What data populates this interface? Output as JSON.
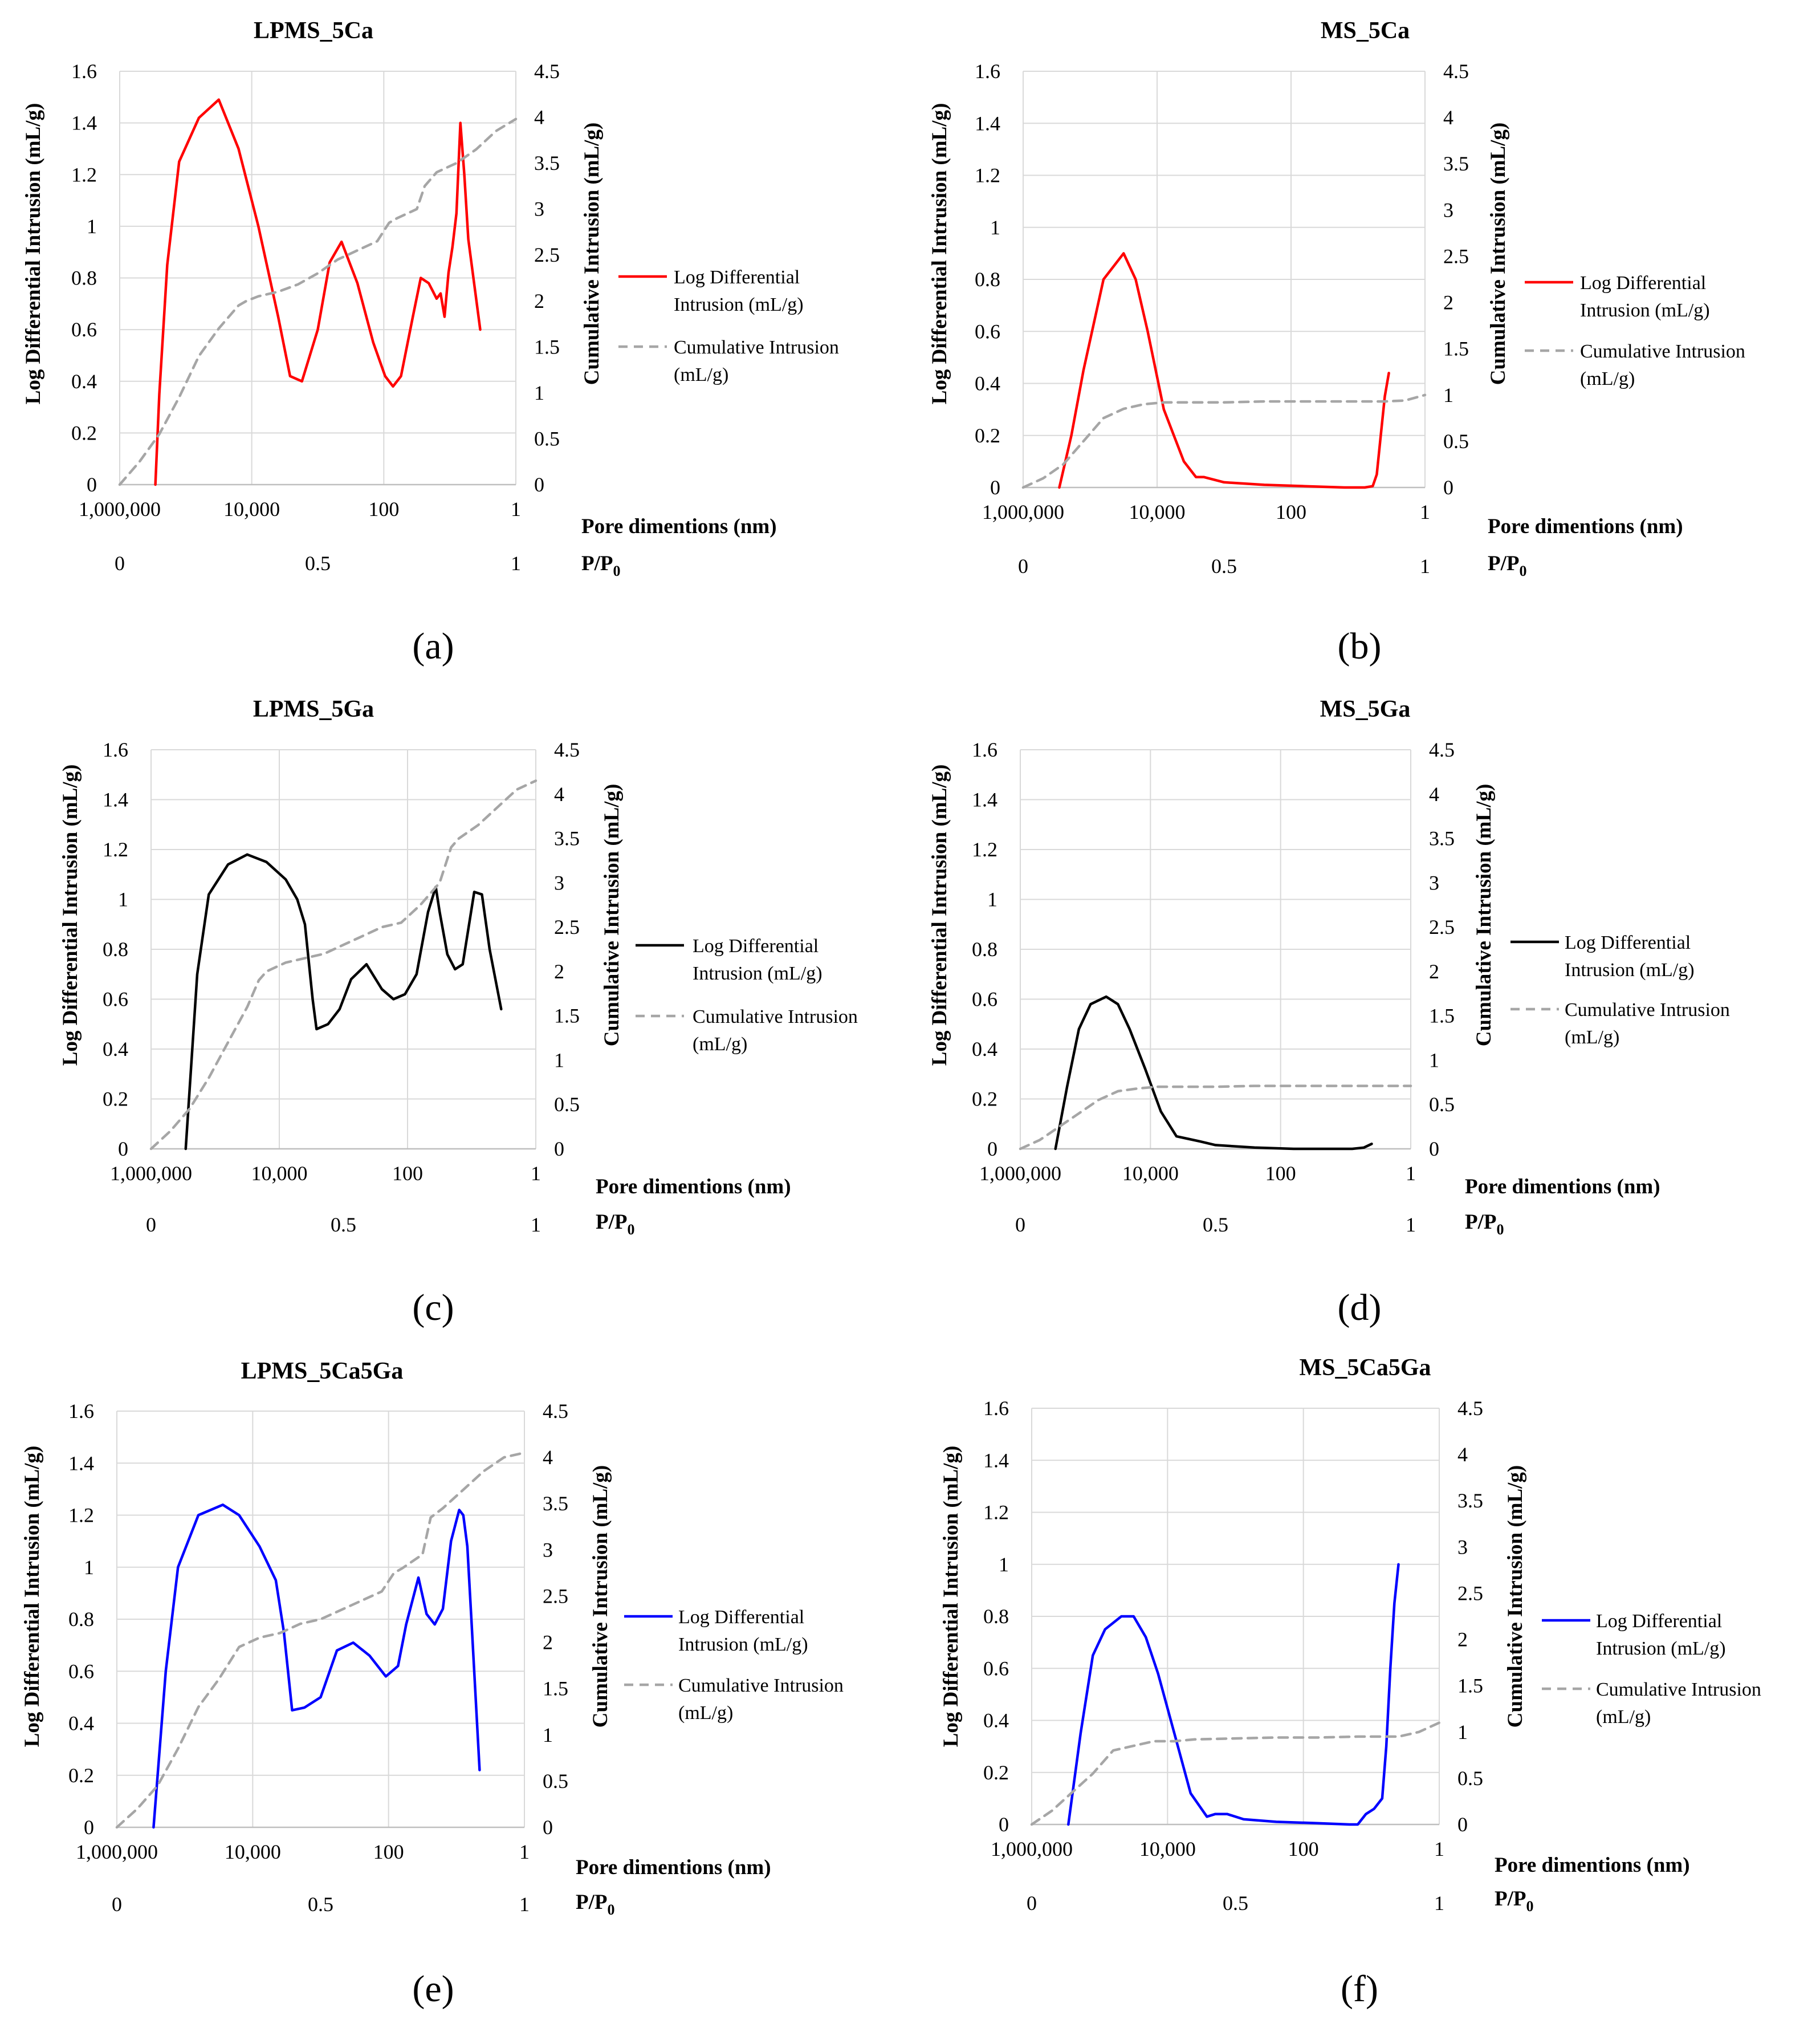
{
  "figure_title": "Pore size distribution panels",
  "chart_data": [
    {
      "id": "a",
      "type": "line",
      "title": "LPMS_5Ca",
      "panel_label": "(a)",
      "color": "#ff0000",
      "y_left": {
        "label": "Log Differential Intrusion (mL/g)",
        "range": [
          0,
          1.6
        ],
        "ticks": [
          "0",
          "0.2",
          "0.4",
          "0.6",
          "0.8",
          "1",
          "1.2",
          "1.4",
          "1.6"
        ]
      },
      "y_right": {
        "label": "Cumulative Intrusion (mL/g)",
        "range": [
          0,
          4.5
        ],
        "ticks": [
          "0",
          "0.5",
          "1",
          "1.5",
          "2",
          "2.5",
          "3",
          "3.5",
          "4",
          "4.5"
        ]
      },
      "x_pore": {
        "label": "Pore dimentions (nm)",
        "ticks": [
          "1,000,000",
          "10,000",
          "100",
          "1"
        ],
        "range": [
          1000000,
          1
        ]
      },
      "x_pp": {
        "label": "P/P0",
        "ticks": [
          "0",
          "0.5",
          "1"
        ],
        "range": [
          0,
          1
        ]
      },
      "legend": [
        "Log Differential Intrusion (mL/g)",
        "Cumulative Intrusion (mL/g)"
      ],
      "series": [
        {
          "name": "Log Differential Intrusion (mL/g)",
          "axis": "left",
          "x": [
            0.09,
            0.1,
            0.12,
            0.15,
            0.2,
            0.25,
            0.3,
            0.35,
            0.4,
            0.43,
            0.46,
            0.5,
            0.53,
            0.56,
            0.6,
            0.64,
            0.67,
            0.69,
            0.71,
            0.74,
            0.76,
            0.78,
            0.79,
            0.8,
            0.81,
            0.82,
            0.83,
            0.84,
            0.85,
            0.86,
            0.87,
            0.88,
            0.91
          ],
          "values": [
            0,
            0.35,
            0.85,
            1.25,
            1.42,
            1.49,
            1.3,
            1.0,
            0.65,
            0.42,
            0.4,
            0.6,
            0.86,
            0.94,
            0.78,
            0.55,
            0.42,
            0.38,
            0.42,
            0.65,
            0.8,
            0.78,
            0.75,
            0.72,
            0.74,
            0.65,
            0.82,
            0.92,
            1.05,
            1.4,
            1.2,
            0.95,
            0.6
          ]
        },
        {
          "name": "Cumulative Intrusion (mL/g)",
          "axis": "right",
          "x": [
            0.0,
            0.05,
            0.1,
            0.15,
            0.2,
            0.25,
            0.3,
            0.32,
            0.35,
            0.4,
            0.45,
            0.5,
            0.55,
            0.6,
            0.65,
            0.68,
            0.7,
            0.75,
            0.77,
            0.8,
            0.85,
            0.9,
            0.95,
            1.0
          ],
          "values": [
            0,
            0.25,
            0.55,
            0.95,
            1.4,
            1.7,
            1.95,
            2.0,
            2.05,
            2.1,
            2.18,
            2.3,
            2.45,
            2.55,
            2.65,
            2.85,
            2.9,
            3.0,
            3.25,
            3.4,
            3.5,
            3.65,
            3.85,
            3.98
          ]
        }
      ]
    },
    {
      "id": "b",
      "type": "line",
      "title": "MS_5Ca",
      "panel_label": "(b)",
      "color": "#ff0000",
      "y_left": {
        "label": "Log Differential Intrusion (mL/g)",
        "range": [
          0,
          1.6
        ],
        "ticks": [
          "0",
          "0.2",
          "0.4",
          "0.6",
          "0.8",
          "1",
          "1.2",
          "1.4",
          "1.6"
        ]
      },
      "y_right": {
        "label": "Cumulative Intrusion (mL/g)",
        "range": [
          0,
          4.5
        ],
        "ticks": [
          "0",
          "0.5",
          "1",
          "1.5",
          "2",
          "2.5",
          "3",
          "3.5",
          "4",
          "4.5"
        ]
      },
      "x_pore": {
        "label": "Pore dimentions (nm)",
        "ticks": [
          "1,000,000",
          "10,000",
          "100",
          "1"
        ],
        "range": [
          1000000,
          1
        ]
      },
      "x_pp": {
        "label": "P/P0",
        "ticks": [
          "0",
          "0.5",
          "1"
        ],
        "range": [
          0,
          1
        ]
      },
      "legend": [
        "Log Differential Intrusion (mL/g)",
        "Cumulative Intrusion (mL/g)"
      ],
      "series": [
        {
          "name": "Log Differential Intrusion (mL/g)",
          "axis": "left",
          "x": [
            0.09,
            0.12,
            0.15,
            0.2,
            0.25,
            0.28,
            0.31,
            0.35,
            0.4,
            0.43,
            0.45,
            0.5,
            0.6,
            0.7,
            0.8,
            0.85,
            0.87,
            0.88,
            0.89,
            0.9,
            0.91
          ],
          "values": [
            0,
            0.2,
            0.45,
            0.8,
            0.9,
            0.8,
            0.6,
            0.3,
            0.1,
            0.04,
            0.04,
            0.02,
            0.01,
            0.005,
            0,
            0,
            0.005,
            0.05,
            0.2,
            0.35,
            0.44
          ]
        },
        {
          "name": "Cumulative Intrusion (mL/g)",
          "axis": "right",
          "x": [
            0.0,
            0.05,
            0.1,
            0.15,
            0.2,
            0.25,
            0.3,
            0.35,
            0.4,
            0.5,
            0.6,
            0.7,
            0.8,
            0.9,
            0.95,
            1.0
          ],
          "values": [
            0,
            0.1,
            0.25,
            0.5,
            0.75,
            0.85,
            0.9,
            0.92,
            0.92,
            0.92,
            0.93,
            0.93,
            0.93,
            0.93,
            0.94,
            1.0
          ]
        }
      ]
    },
    {
      "id": "c",
      "type": "line",
      "title": "LPMS_5Ga",
      "panel_label": "(c)",
      "color": "#000000",
      "y_left": {
        "label": "Log Differential Intrusion (mL/g)",
        "range": [
          0,
          1.6
        ],
        "ticks": [
          "0",
          "0.2",
          "0.4",
          "0.6",
          "0.8",
          "1",
          "1.2",
          "1.4",
          "1.6"
        ]
      },
      "y_right": {
        "label": "Cumulative Intrusion (mL/g)",
        "range": [
          0,
          4.5
        ],
        "ticks": [
          "0",
          "0.5",
          "1",
          "1.5",
          "2",
          "2.5",
          "3",
          "3.5",
          "4",
          "4.5"
        ]
      },
      "x_pore": {
        "label": "Pore dimentions (nm)",
        "ticks": [
          "1,000,000",
          "10,000",
          "100",
          "1"
        ],
        "range": [
          1000000,
          1
        ]
      },
      "x_pp": {
        "label": "P/P0",
        "ticks": [
          "0",
          "0.5",
          "1"
        ],
        "range": [
          0,
          1
        ]
      },
      "legend": [
        "Log Differential Intrusion (mL/g)",
        "Cumulative Intrusion (mL/g)"
      ],
      "series": [
        {
          "name": "Log Differential Intrusion (mL/g)",
          "axis": "left",
          "x": [
            0.09,
            0.12,
            0.15,
            0.2,
            0.25,
            0.3,
            0.35,
            0.38,
            0.4,
            0.42,
            0.43,
            0.46,
            0.49,
            0.52,
            0.56,
            0.6,
            0.63,
            0.66,
            0.69,
            0.72,
            0.74,
            0.75,
            0.77,
            0.79,
            0.81,
            0.84,
            0.86,
            0.88,
            0.91
          ],
          "values": [
            0,
            0.7,
            1.02,
            1.14,
            1.18,
            1.15,
            1.08,
            1.0,
            0.9,
            0.6,
            0.48,
            0.5,
            0.56,
            0.68,
            0.74,
            0.64,
            0.6,
            0.62,
            0.7,
            0.95,
            1.05,
            0.95,
            0.78,
            0.72,
            0.74,
            1.03,
            1.02,
            0.8,
            0.56
          ]
        },
        {
          "name": "Cumulative Intrusion (mL/g)",
          "axis": "right",
          "x": [
            0.0,
            0.05,
            0.1,
            0.15,
            0.2,
            0.25,
            0.28,
            0.3,
            0.35,
            0.4,
            0.45,
            0.5,
            0.55,
            0.6,
            0.65,
            0.7,
            0.73,
            0.75,
            0.78,
            0.8,
            0.85,
            0.9,
            0.95,
            1.0
          ],
          "values": [
            0,
            0.2,
            0.45,
            0.8,
            1.2,
            1.6,
            1.9,
            2.0,
            2.1,
            2.15,
            2.2,
            2.3,
            2.4,
            2.5,
            2.55,
            2.75,
            2.9,
            3.0,
            3.4,
            3.5,
            3.65,
            3.85,
            4.05,
            4.15
          ]
        }
      ]
    },
    {
      "id": "d",
      "type": "line",
      "title": "MS_5Ga",
      "panel_label": "(d)",
      "color": "#000000",
      "y_left": {
        "label": "Log Differential Intrusion (mL/g)",
        "range": [
          0,
          1.6
        ],
        "ticks": [
          "0",
          "0.2",
          "0.4",
          "0.6",
          "0.8",
          "1",
          "1.2",
          "1.4",
          "1.6"
        ]
      },
      "y_right": {
        "label": "Cumulative Intrusion (mL/g)",
        "range": [
          0,
          4.5
        ],
        "ticks": [
          "0",
          "0.5",
          "1",
          "1.5",
          "2",
          "2.5",
          "3",
          "3.5",
          "4",
          "4.5"
        ]
      },
      "x_pore": {
        "label": "Pore dimentions (nm)",
        "ticks": [
          "1,000,000",
          "10,000",
          "100",
          "1"
        ],
        "range": [
          1000000,
          1
        ]
      },
      "x_pp": {
        "label": "P/P0",
        "ticks": [
          "0",
          "0.5",
          "1"
        ],
        "range": [
          0,
          1
        ]
      },
      "legend": [
        "Log Differential Intrusion (mL/g)",
        "Cumulative Intrusion (mL/g)"
      ],
      "series": [
        {
          "name": "Log Differential Intrusion (mL/g)",
          "axis": "left",
          "x": [
            0.09,
            0.12,
            0.15,
            0.18,
            0.22,
            0.25,
            0.28,
            0.32,
            0.36,
            0.4,
            0.43,
            0.46,
            0.5,
            0.6,
            0.7,
            0.8,
            0.85,
            0.88,
            0.9
          ],
          "values": [
            0,
            0.25,
            0.48,
            0.58,
            0.61,
            0.58,
            0.48,
            0.32,
            0.15,
            0.05,
            0.04,
            0.03,
            0.015,
            0.005,
            0,
            0,
            0,
            0.005,
            0.02
          ]
        },
        {
          "name": "Cumulative Intrusion (mL/g)",
          "axis": "right",
          "x": [
            0.0,
            0.05,
            0.1,
            0.15,
            0.2,
            0.25,
            0.3,
            0.35,
            0.4,
            0.5,
            0.6,
            0.7,
            0.8,
            0.9,
            1.0
          ],
          "values": [
            0,
            0.1,
            0.25,
            0.4,
            0.55,
            0.65,
            0.68,
            0.7,
            0.7,
            0.7,
            0.71,
            0.71,
            0.71,
            0.71,
            0.71
          ]
        }
      ]
    },
    {
      "id": "e",
      "type": "line",
      "title": "LPMS_5Ca5Ga",
      "panel_label": "(e)",
      "color": "#0000ff",
      "y_left": {
        "label": "Log Differential Intrusion (mL/g)",
        "range": [
          0,
          1.6
        ],
        "ticks": [
          "0",
          "0.2",
          "0.4",
          "0.6",
          "0.8",
          "1",
          "1.2",
          "1.4",
          "1.6"
        ]
      },
      "y_right": {
        "label": "Cumulative Intrusion (mL/g)",
        "range": [
          0,
          4.5
        ],
        "ticks": [
          "0",
          "0.5",
          "1",
          "1.5",
          "2",
          "2.5",
          "3",
          "3.5",
          "4",
          "4.5"
        ]
      },
      "x_pore": {
        "label": "Pore dimentions (nm)",
        "ticks": [
          "1,000,000",
          "10,000",
          "100",
          "1"
        ],
        "range": [
          1000000,
          1
        ]
      },
      "x_pp": {
        "label": "P/P0",
        "ticks": [
          "0",
          "0.5",
          "1"
        ],
        "range": [
          0,
          1
        ]
      },
      "legend": [
        "Log Differential Intrusion (mL/g)",
        "Cumulative Intrusion (mL/g)"
      ],
      "series": [
        {
          "name": "Log Differential Intrusion (mL/g)",
          "axis": "left",
          "x": [
            0.09,
            0.12,
            0.15,
            0.2,
            0.26,
            0.3,
            0.35,
            0.39,
            0.41,
            0.43,
            0.46,
            0.5,
            0.54,
            0.58,
            0.62,
            0.66,
            0.69,
            0.71,
            0.74,
            0.76,
            0.78,
            0.8,
            0.82,
            0.84,
            0.85,
            0.86,
            0.87,
            0.89
          ],
          "values": [
            0,
            0.6,
            1.0,
            1.2,
            1.24,
            1.2,
            1.08,
            0.95,
            0.75,
            0.45,
            0.46,
            0.5,
            0.68,
            0.71,
            0.66,
            0.58,
            0.62,
            0.78,
            0.96,
            0.82,
            0.78,
            0.84,
            1.1,
            1.22,
            1.2,
            1.08,
            0.8,
            0.22
          ]
        },
        {
          "name": "Cumulative Intrusion (mL/g)",
          "axis": "right",
          "x": [
            0.0,
            0.05,
            0.1,
            0.15,
            0.2,
            0.25,
            0.3,
            0.35,
            0.4,
            0.45,
            0.5,
            0.55,
            0.6,
            0.65,
            0.68,
            0.7,
            0.75,
            0.77,
            0.8,
            0.85,
            0.9,
            0.95,
            1.0
          ],
          "values": [
            0,
            0.2,
            0.45,
            0.85,
            1.3,
            1.6,
            1.95,
            2.05,
            2.1,
            2.2,
            2.25,
            2.35,
            2.45,
            2.55,
            2.75,
            2.8,
            2.95,
            3.35,
            3.45,
            3.65,
            3.85,
            4.0,
            4.05
          ]
        }
      ]
    },
    {
      "id": "f",
      "type": "line",
      "title": "MS_5Ca5Ga",
      "panel_label": "(f)",
      "color": "#0000ff",
      "y_left": {
        "label": "Log Differential Intrusion (mL/g)",
        "range": [
          0,
          1.6
        ],
        "ticks": [
          "0",
          "0.2",
          "0.4",
          "0.6",
          "0.8",
          "1",
          "1.2",
          "1.4",
          "1.6"
        ]
      },
      "y_right": {
        "label": "Cumulative Intrusion (mL/g)",
        "range": [
          0,
          4.5
        ],
        "ticks": [
          "0",
          "0.5",
          "1",
          "1.5",
          "2",
          "2.5",
          "3",
          "3.5",
          "4",
          "4.5"
        ]
      },
      "x_pore": {
        "label": "Pore dimentions (nm)",
        "ticks": [
          "1,000,000",
          "10,000",
          "100",
          "1"
        ],
        "range": [
          1000000,
          1
        ]
      },
      "x_pp": {
        "label": "P/P0",
        "ticks": [
          "0",
          "0.5",
          "1"
        ],
        "range": [
          0,
          1
        ]
      },
      "legend": [
        "Log Differential Intrusion (mL/g)",
        "Cumulative Intrusion (mL/g)"
      ],
      "series": [
        {
          "name": "Log Differential Intrusion (mL/g)",
          "axis": "left",
          "x": [
            0.09,
            0.12,
            0.15,
            0.18,
            0.22,
            0.25,
            0.28,
            0.31,
            0.35,
            0.39,
            0.43,
            0.45,
            0.48,
            0.52,
            0.6,
            0.7,
            0.78,
            0.8,
            0.82,
            0.84,
            0.86,
            0.87,
            0.88,
            0.89,
            0.9
          ],
          "values": [
            0,
            0.35,
            0.65,
            0.75,
            0.8,
            0.8,
            0.72,
            0.58,
            0.35,
            0.12,
            0.03,
            0.04,
            0.04,
            0.02,
            0.01,
            0.005,
            0,
            0,
            0.04,
            0.06,
            0.1,
            0.3,
            0.6,
            0.85,
            1.0
          ]
        },
        {
          "name": "Cumulative Intrusion (mL/g)",
          "axis": "right",
          "x": [
            0.0,
            0.05,
            0.1,
            0.15,
            0.2,
            0.25,
            0.3,
            0.35,
            0.4,
            0.5,
            0.6,
            0.7,
            0.8,
            0.9,
            0.95,
            1.0
          ],
          "values": [
            0,
            0.15,
            0.35,
            0.55,
            0.8,
            0.85,
            0.9,
            0.9,
            0.92,
            0.93,
            0.94,
            0.94,
            0.95,
            0.95,
            1.0,
            1.1
          ]
        }
      ]
    }
  ]
}
